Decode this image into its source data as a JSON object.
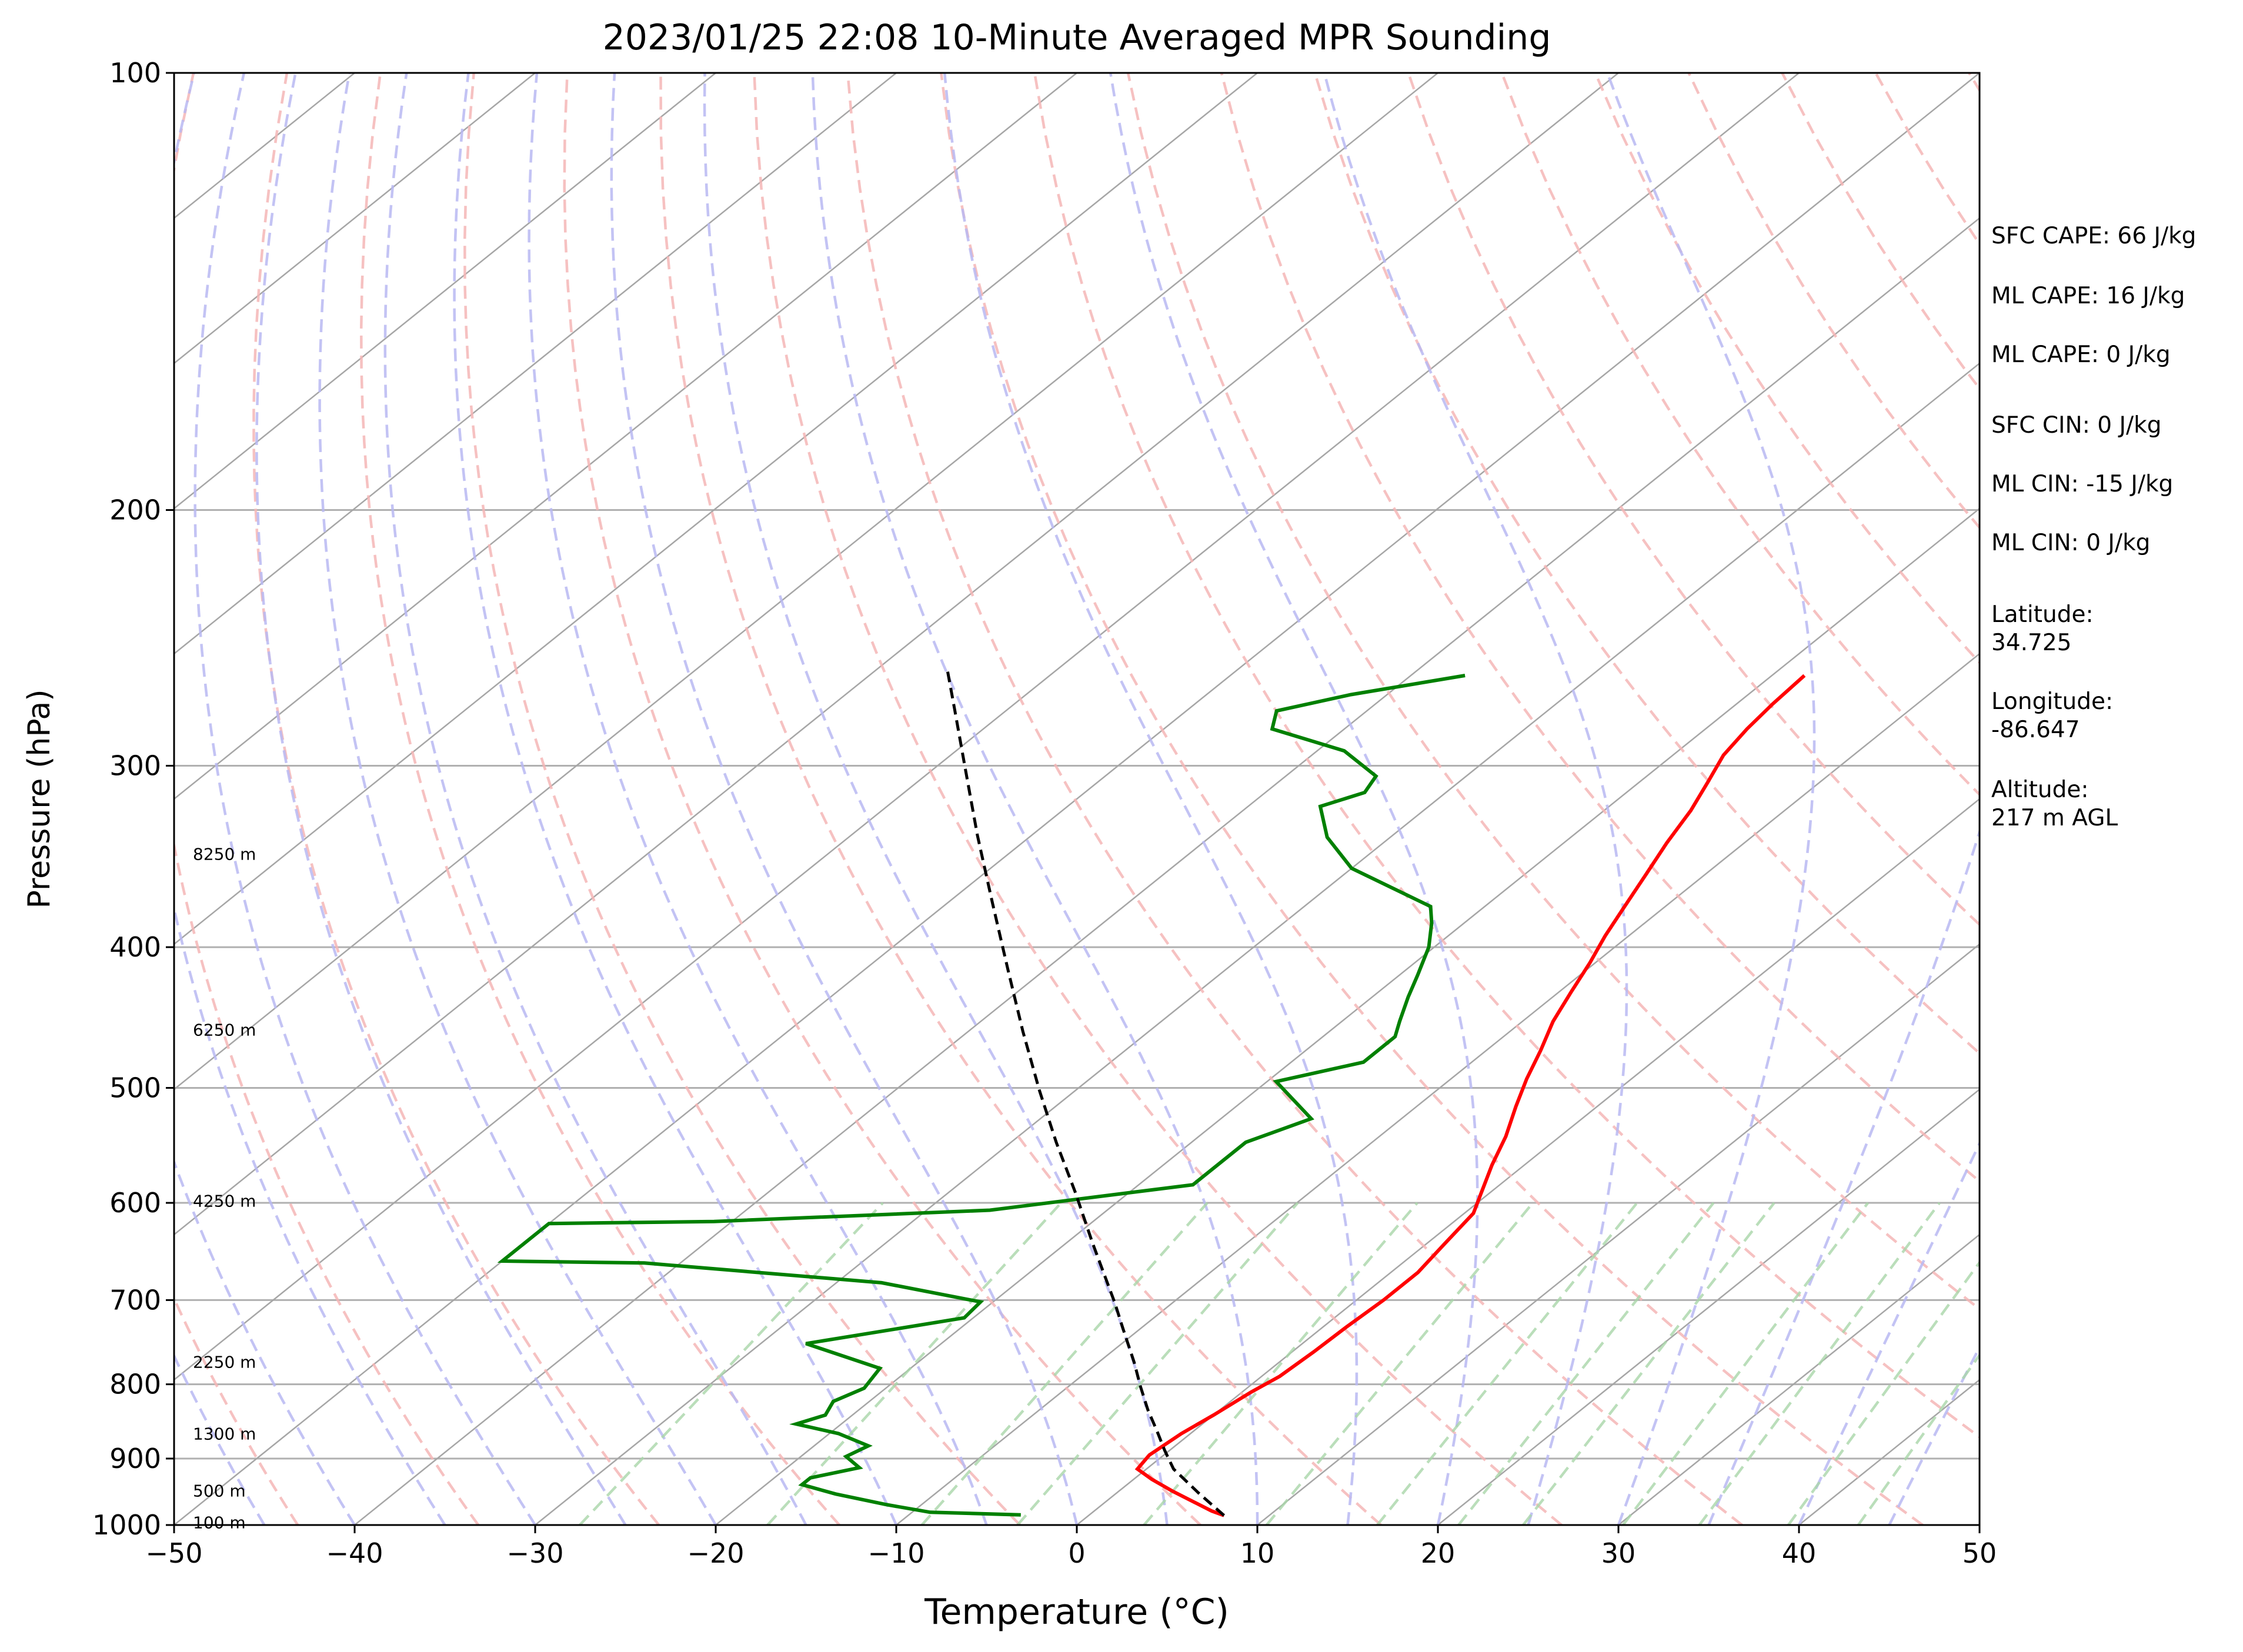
{
  "title": "2023/01/25 22:08 10-Minute Averaged MPR Sounding",
  "chart_data": {
    "type": "line",
    "title": "2023/01/25 22:08 10-Minute Averaged MPR Sounding",
    "xlabel": "Temperature (°C)",
    "ylabel": "Pressure (hPa)",
    "xlim": [
      -50,
      50
    ],
    "ylim": [
      1000,
      100
    ],
    "yscale": "log",
    "skew": true,
    "grid": true,
    "x_ticks": [
      "−50",
      "−40",
      "−30",
      "−20",
      "−10",
      "0",
      "10",
      "20",
      "30",
      "40",
      "50"
    ],
    "x_tick_values": [
      -50,
      -40,
      -30,
      -20,
      -10,
      0,
      10,
      20,
      30,
      40,
      50
    ],
    "y_ticks": [
      "100",
      "200",
      "300",
      "400",
      "500",
      "600",
      "700",
      "800",
      "900",
      "1000"
    ],
    "y_tick_values": [
      100,
      200,
      300,
      400,
      500,
      600,
      700,
      800,
      900,
      1000
    ],
    "height_labels": [
      {
        "text": "8250 m",
        "p": 345
      },
      {
        "text": "6250 m",
        "p": 456
      },
      {
        "text": "4250 m",
        "p": 598
      },
      {
        "text": "2250 m",
        "p": 772
      },
      {
        "text": "1300 m",
        "p": 865
      },
      {
        "text": "500 m",
        "p": 947
      },
      {
        "text": "100 m",
        "p": 996
      }
    ],
    "series": [
      {
        "role": "temperature",
        "color": "#ff0000",
        "points": [
          [
            7.5,
            985
          ],
          [
            6.5,
            978
          ],
          [
            5.0,
            965
          ],
          [
            3.0,
            948
          ],
          [
            1.0,
            930
          ],
          [
            -0.5,
            915
          ],
          [
            -0.8,
            895
          ],
          [
            -0.5,
            865
          ],
          [
            0.0,
            840
          ],
          [
            0.5,
            810
          ],
          [
            1.0,
            790
          ],
          [
            1.2,
            760
          ],
          [
            1.3,
            730
          ],
          [
            1.5,
            700
          ],
          [
            1.5,
            670
          ],
          [
            1.0,
            640
          ],
          [
            0.5,
            610
          ],
          [
            -0.5,
            590
          ],
          [
            -1.8,
            565
          ],
          [
            -3.0,
            540
          ],
          [
            -4.5,
            515
          ],
          [
            -5.8,
            493
          ],
          [
            -7.0,
            471
          ],
          [
            -8.3,
            450
          ],
          [
            -9.3,
            430
          ],
          [
            -10.3,
            410
          ],
          [
            -11.3,
            393
          ],
          [
            -12.2,
            376
          ],
          [
            -13.3,
            356
          ],
          [
            -14.3,
            339
          ],
          [
            -15.2,
            322
          ],
          [
            -16.2,
            308
          ],
          [
            -17.2,
            295
          ],
          [
            -17.7,
            283
          ],
          [
            -18.0,
            272
          ],
          [
            -18.2,
            260
          ]
        ]
      },
      {
        "role": "dewpoint",
        "color": "#008000",
        "points": [
          [
            -3.8,
            984
          ],
          [
            -9.0,
            980
          ],
          [
            -12.0,
            968
          ],
          [
            -15.5,
            952
          ],
          [
            -18.0,
            938
          ],
          [
            -18.0,
            928
          ],
          [
            -16.0,
            913
          ],
          [
            -17.5,
            897
          ],
          [
            -17.0,
            882
          ],
          [
            -19.5,
            865
          ],
          [
            -22.5,
            852
          ],
          [
            -21.5,
            840
          ],
          [
            -22.0,
            822
          ],
          [
            -21.2,
            805
          ],
          [
            -21.7,
            780
          ],
          [
            -27.5,
            750
          ],
          [
            -20.5,
            720
          ],
          [
            -20.7,
            702
          ],
          [
            -27.5,
            681
          ],
          [
            -42.0,
            660
          ],
          [
            -50.0,
            658
          ],
          [
            -50.0,
            620
          ],
          [
            -41.0,
            618
          ],
          [
            -26.5,
            607
          ],
          [
            -17.0,
            583
          ],
          [
            -17.0,
            560
          ],
          [
            -17.0,
            545
          ],
          [
            -15.0,
            525
          ],
          [
            -19.5,
            495
          ],
          [
            -16.0,
            480
          ],
          [
            -16.0,
            461
          ],
          [
            -16.8,
            450
          ],
          [
            -18.0,
            433
          ],
          [
            -19.0,
            418
          ],
          [
            -20.3,
            400
          ],
          [
            -21.8,
            385
          ],
          [
            -23.0,
            375
          ],
          [
            -30.0,
            353
          ],
          [
            -33.5,
            336
          ],
          [
            -36.0,
            320
          ],
          [
            -34.5,
            313
          ],
          [
            -35.0,
            305
          ],
          [
            -38.5,
            293
          ],
          [
            -44.0,
            283
          ],
          [
            -45.0,
            275
          ],
          [
            -42.0,
            268
          ],
          [
            -37.0,
            260
          ]
        ]
      },
      {
        "role": "parcel",
        "color": "#000000",
        "dashed": true,
        "points": [
          [
            7.5,
            985
          ],
          [
            4.5,
            950
          ],
          [
            1.5,
            915
          ],
          [
            -0.3,
            888
          ],
          [
            -2.0,
            862
          ],
          [
            -4.0,
            833
          ],
          [
            -6.0,
            803
          ],
          [
            -8.0,
            773
          ],
          [
            -11.0,
            732
          ],
          [
            -13.2,
            703
          ],
          [
            -18.5,
            640
          ],
          [
            -23.0,
            590
          ],
          [
            -27.5,
            545
          ],
          [
            -32.0,
            502
          ],
          [
            -37.0,
            457
          ],
          [
            -42.0,
            415
          ],
          [
            -47.5,
            373
          ],
          [
            -53.0,
            335
          ],
          [
            -58.0,
            303
          ],
          [
            -63.0,
            274
          ],
          [
            -66.0,
            258
          ]
        ]
      }
    ]
  },
  "annotations": {
    "sfc_cape": "SFC CAPE: 66 J/kg",
    "ml_cape_1": "ML CAPE: 16 J/kg",
    "ml_cape_2": "ML CAPE: 0 J/kg",
    "sfc_cin": "SFC CIN: 0 J/kg",
    "ml_cin_1": "ML CIN: -15 J/kg",
    "ml_cin_2": "ML CIN: 0 J/kg",
    "latitude_label": "Latitude:",
    "latitude_value": "34.725",
    "longitude_label": "Longitude:",
    "longitude_value": "-86.647",
    "altitude_label": "Altitude:",
    "altitude_value": "217 m AGL"
  },
  "colors": {
    "temperature": "#ff0000",
    "dewpoint": "#008000",
    "parcel": "#000000",
    "isobar_grid": "#b0b0b0",
    "isotherm": "#a6a6a6",
    "dry_adiabat": "#f4b6b6",
    "moist_adiabat": "#b8b8f2",
    "mixing_ratio": "#a9d6a9"
  }
}
